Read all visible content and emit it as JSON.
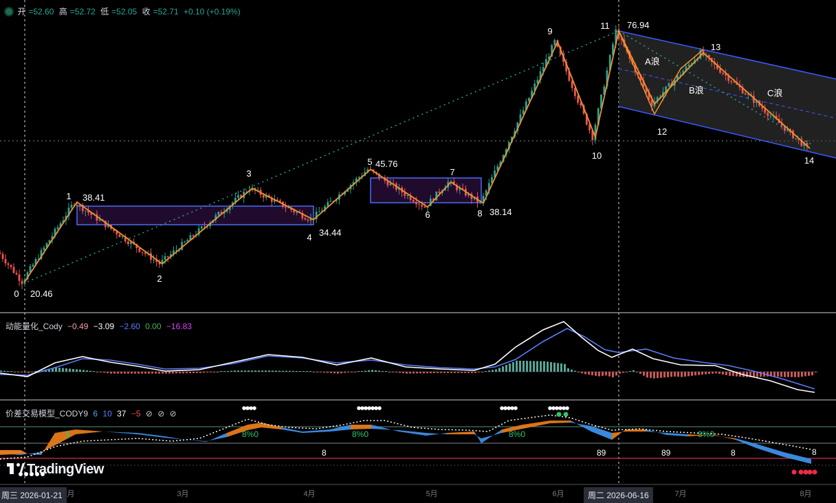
{
  "header": {
    "open_label": "开",
    "open": "52.60",
    "high_label": "高",
    "high": "52.72",
    "low_label": "低",
    "low": "52.05",
    "close_label": "收",
    "close": "52.71",
    "change": "+0.10 (+0.19%)"
  },
  "indicator1": {
    "name": "动能量化_Cody",
    "values": [
      "−0.49",
      "−3.09",
      "−2.60",
      "0.00",
      "−16.83"
    ]
  },
  "indicator2": {
    "name": "价差交易模型_CODY9",
    "values": [
      "6",
      "10",
      "37",
      "−5",
      "⊘",
      "⊘",
      "⊘"
    ]
  },
  "xaxis": {
    "months": [
      "2月",
      "3月",
      "4月",
      "5月",
      "6月",
      "7月",
      "8月"
    ],
    "cursor_left": "周三 2026-01-21",
    "cursor_right": "周二 2026-06-16"
  },
  "logo_text": "TradingView",
  "colors": {
    "up": "#26a69a",
    "down": "#ef5350",
    "zigzag": "#f0922a",
    "box": "#4a6cf7",
    "channel": "#3d5afe",
    "dotted_trend": "#26a69a"
  },
  "chart_data": {
    "type": "candlestick",
    "y_unit": "price",
    "wave_points": [
      {
        "label": "0",
        "value": 20.46
      },
      {
        "label": "1",
        "value": 38.41
      },
      {
        "label": "2",
        "value": null
      },
      {
        "label": "3",
        "value": null
      },
      {
        "label": "4",
        "value": 34.44
      },
      {
        "label": "5",
        "value": 45.76
      },
      {
        "label": "6",
        "value": null
      },
      {
        "label": "7",
        "value": null
      },
      {
        "label": "8",
        "value": 38.14
      },
      {
        "label": "9",
        "value": null
      },
      {
        "label": "10",
        "value": null
      },
      {
        "label": "11",
        "value": 76.94
      },
      {
        "label": "12",
        "value": null
      },
      {
        "label": "13",
        "value": null
      },
      {
        "label": "14",
        "value": null
      }
    ],
    "wave_labels": [
      "A浪",
      "B浪",
      "C浪"
    ],
    "sub_labels": [
      "8",
      "8%0",
      "8%0",
      "8%0",
      "8%0",
      "8",
      "89",
      "89",
      "8",
      "8"
    ]
  }
}
